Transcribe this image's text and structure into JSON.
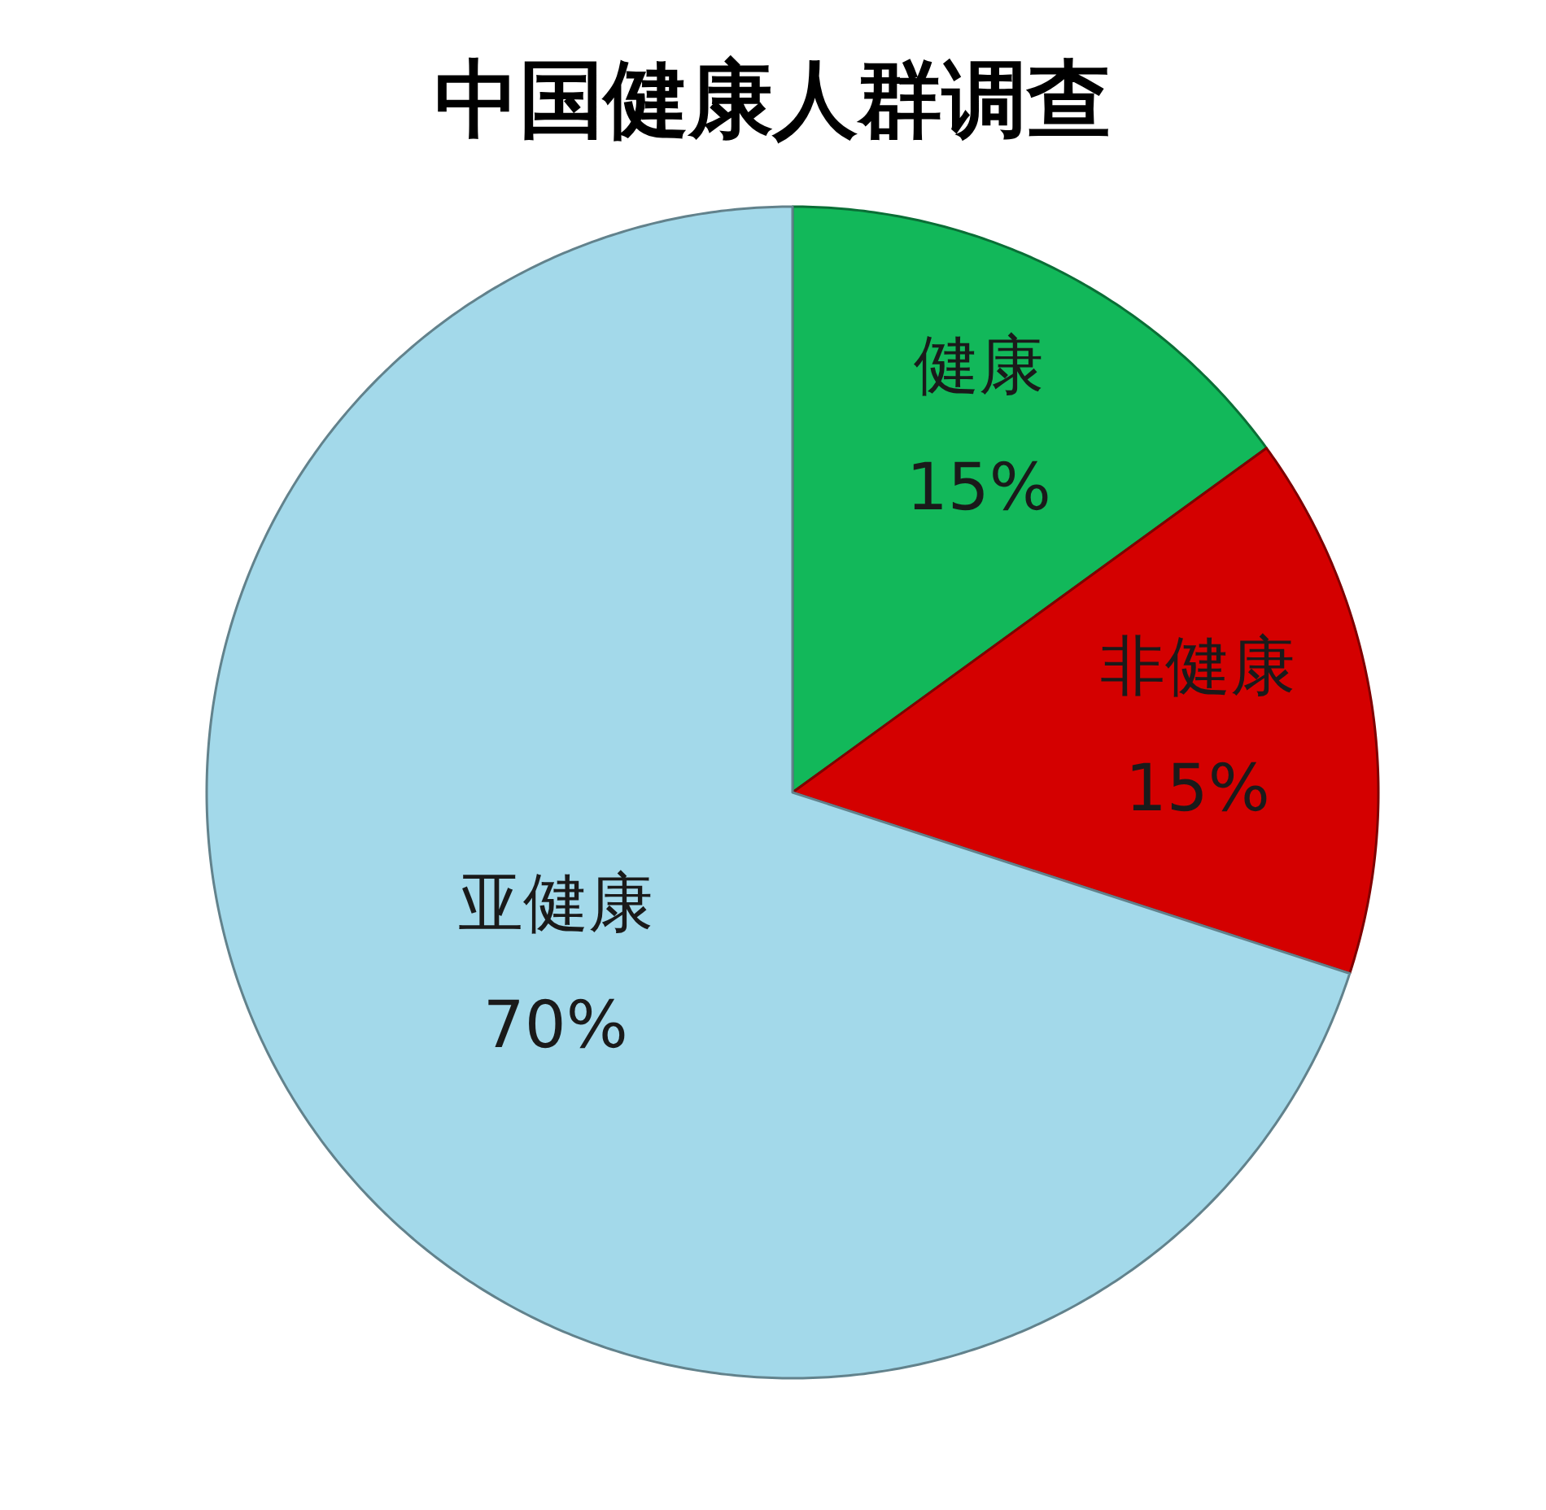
{
  "chart_data": {
    "type": "pie",
    "title": "中国健康人群调查",
    "categories": [
      "健康",
      "非健康",
      "亚健康"
    ],
    "values": [
      15,
      15,
      70
    ],
    "colors": [
      "#12b85a",
      "#d40000",
      "#a3d9ea"
    ],
    "value_labels": [
      "15%",
      "15%",
      "70%"
    ]
  }
}
